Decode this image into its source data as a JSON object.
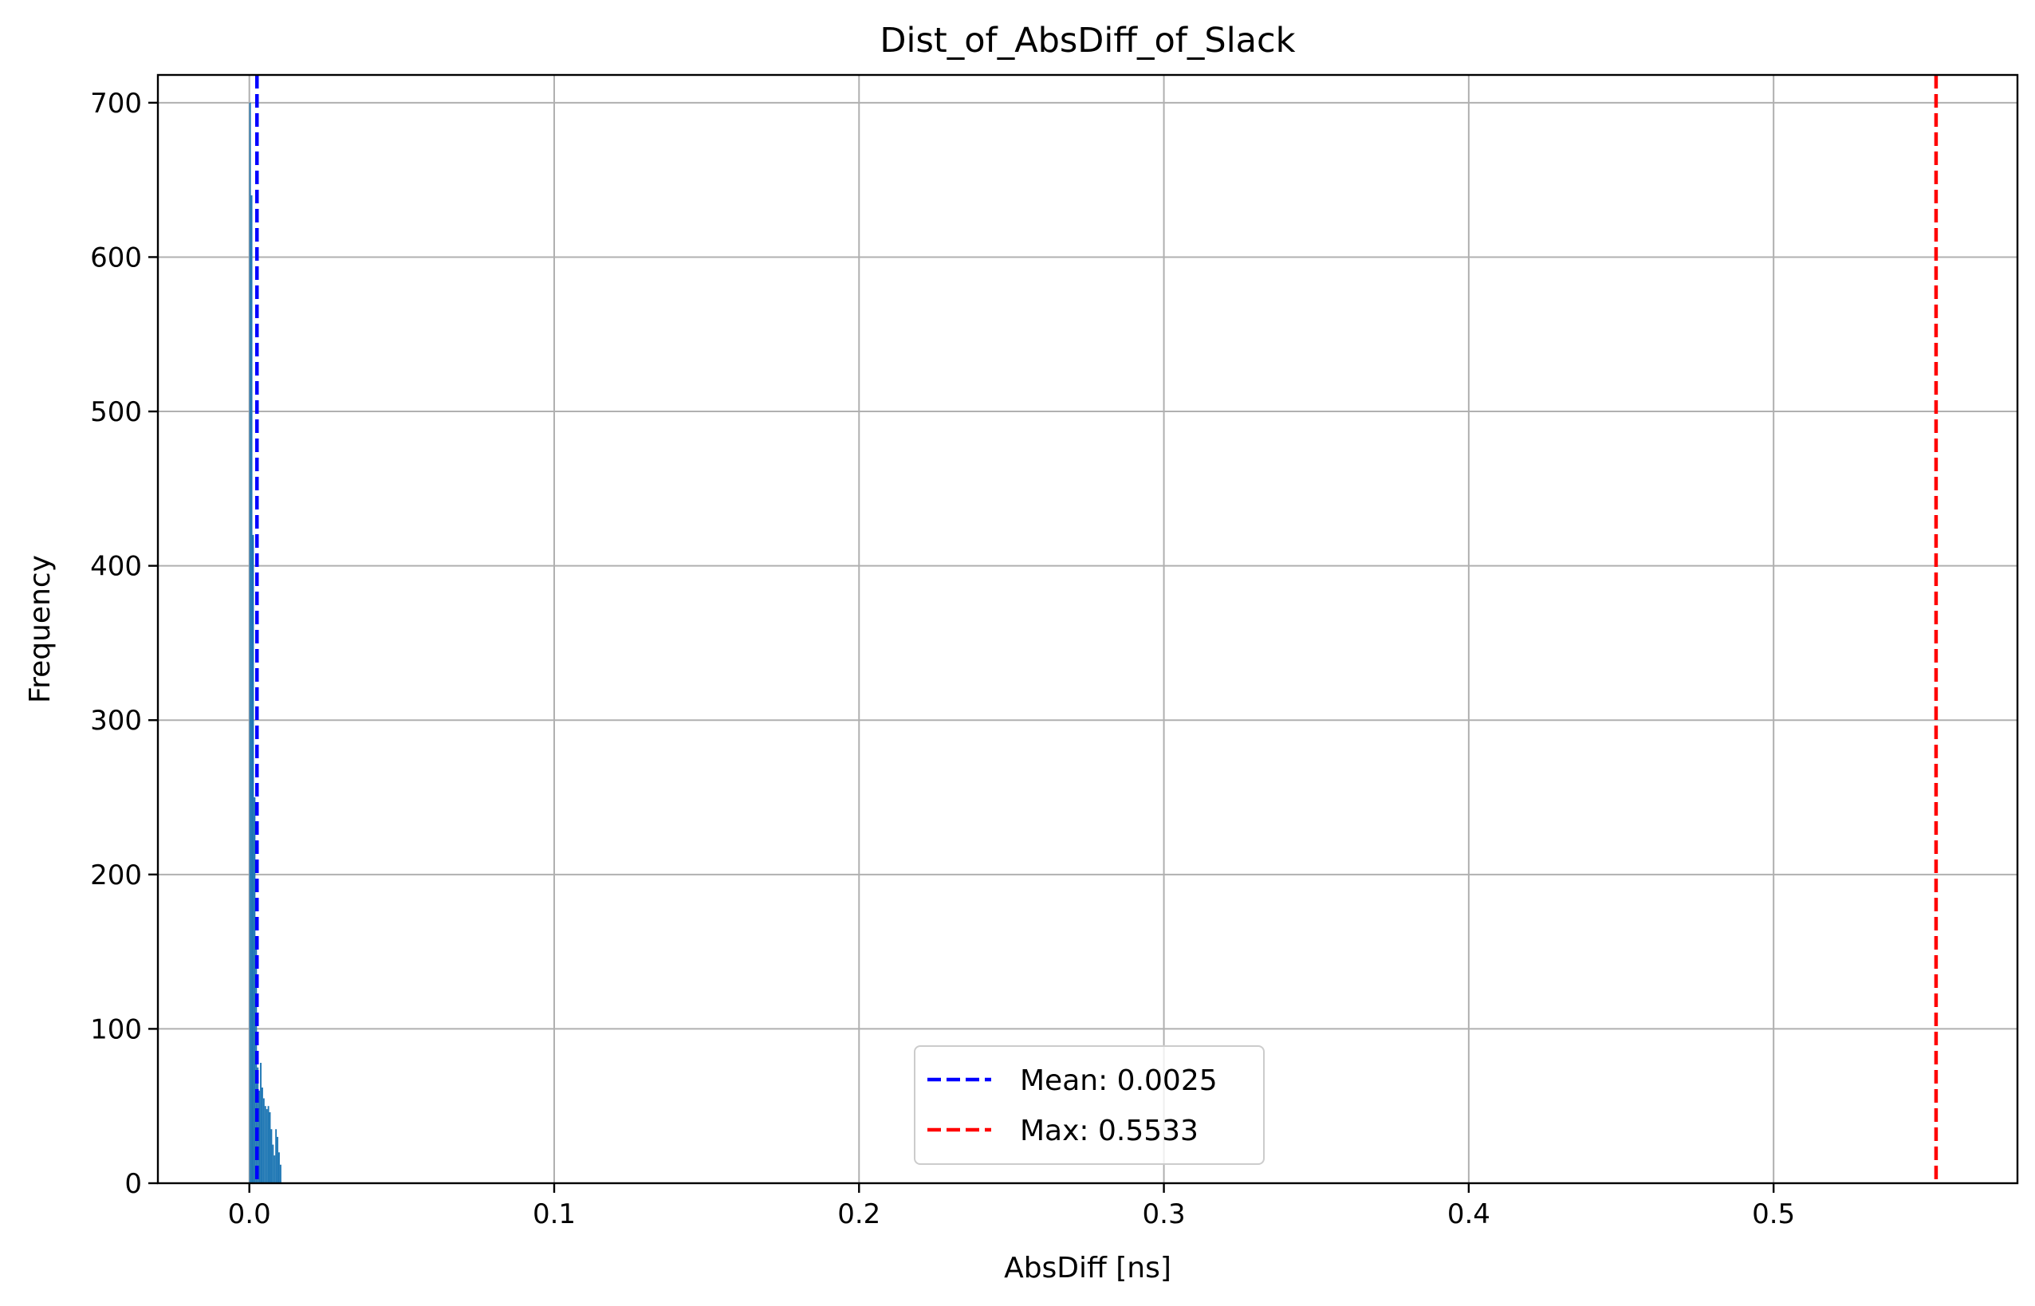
{
  "chart_data": {
    "type": "bar",
    "title": "Dist_of_AbsDiff_of_Slack",
    "xlabel": "AbsDiff [ns]",
    "ylabel": "Frequency",
    "xlim": [
      -0.03,
      0.58
    ],
    "ylim": [
      0,
      718
    ],
    "xticks": [
      0.0,
      0.1,
      0.2,
      0.3,
      0.4,
      0.5
    ],
    "xtick_labels": [
      "0.0",
      "0.1",
      "0.2",
      "0.3",
      "0.4",
      "0.5"
    ],
    "yticks": [
      0,
      100,
      200,
      300,
      400,
      500,
      600,
      700
    ],
    "ytick_labels": [
      "0",
      "100",
      "200",
      "300",
      "400",
      "500",
      "600",
      "700"
    ],
    "grid": true,
    "bar_color": "#1f77b4",
    "histogram": {
      "bin_width": 0.0005,
      "bin_starts": [
        0.0,
        0.0005,
        0.001,
        0.0015,
        0.002,
        0.0025,
        0.003,
        0.0035,
        0.004,
        0.0045,
        0.005,
        0.0055,
        0.006,
        0.0065,
        0.007,
        0.0075,
        0.008,
        0.0085,
        0.009,
        0.0095,
        0.01
      ],
      "counts": [
        700,
        640,
        420,
        250,
        160,
        75,
        60,
        78,
        62,
        55,
        50,
        48,
        50,
        46,
        35,
        25,
        18,
        35,
        30,
        20,
        12
      ]
    },
    "reference_lines": [
      {
        "label": "Mean: 0.0025",
        "x": 0.0025,
        "color": "#0000ff",
        "style": "dashed"
      },
      {
        "label": "Max: 0.5533",
        "x": 0.5533,
        "color": "#ff0000",
        "style": "dashed"
      }
    ],
    "legend": {
      "placement": "lower-center",
      "entries": [
        "Mean: 0.0025",
        "Max: 0.5533"
      ]
    }
  }
}
